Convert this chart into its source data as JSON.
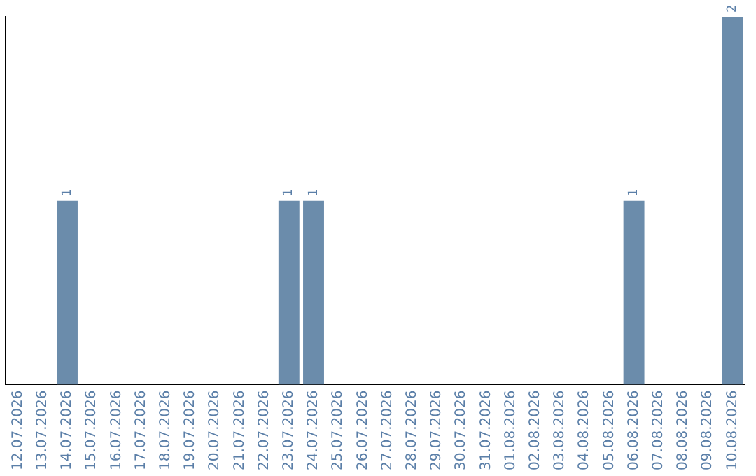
{
  "chart_data": {
    "type": "bar",
    "categories": [
      "12.07.2026",
      "13.07.2026",
      "14.07.2026",
      "15.07.2026",
      "16.07.2026",
      "17.07.2026",
      "18.07.2026",
      "19.07.2026",
      "20.07.2026",
      "21.07.2026",
      "22.07.2026",
      "23.07.2026",
      "24.07.2026",
      "25.07.2026",
      "26.07.2026",
      "27.07.2026",
      "28.07.2026",
      "29.07.2026",
      "30.07.2026",
      "31.07.2026",
      "01.08.2026",
      "02.08.2026",
      "03.08.2026",
      "04.08.2026",
      "05.08.2026",
      "06.08.2026",
      "07.08.2026",
      "08.08.2026",
      "09.08.2026",
      "10.08.2026"
    ],
    "values": [
      0,
      0,
      1,
      0,
      0,
      0,
      0,
      0,
      0,
      0,
      0,
      1,
      1,
      0,
      0,
      0,
      0,
      0,
      0,
      0,
      0,
      0,
      0,
      0,
      0,
      1,
      0,
      0,
      0,
      2
    ],
    "value_labels": [
      null,
      null,
      "1",
      null,
      null,
      null,
      null,
      null,
      null,
      null,
      null,
      "1",
      "1",
      null,
      null,
      null,
      null,
      null,
      null,
      null,
      null,
      null,
      null,
      null,
      null,
      "1",
      null,
      null,
      null,
      "2"
    ],
    "color": "#6b8cab",
    "tick_labels": "x",
    "grid": false,
    "legend": false
  }
}
